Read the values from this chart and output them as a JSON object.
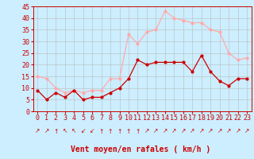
{
  "hours": [
    0,
    1,
    2,
    3,
    4,
    5,
    6,
    7,
    8,
    9,
    10,
    11,
    12,
    13,
    14,
    15,
    16,
    17,
    18,
    19,
    20,
    21,
    22,
    23
  ],
  "vent_moyen": [
    9,
    5,
    8,
    6,
    9,
    5,
    6,
    6,
    8,
    10,
    14,
    22,
    20,
    21,
    21,
    21,
    21,
    17,
    24,
    17,
    13,
    11,
    14,
    14
  ],
  "rafales": [
    15,
    14,
    10,
    8,
    9,
    8,
    9,
    9,
    14,
    14,
    33,
    29,
    34,
    35,
    43,
    40,
    39,
    38,
    38,
    35,
    34,
    25,
    22,
    23
  ],
  "vent_moyen_color": "#cc0000",
  "rafales_color": "#ffaaaa",
  "bg_color": "#cceeff",
  "grid_color": "#bbbbbb",
  "axis_color": "#cc0000",
  "xlabel": "Vent moyen/en rafales ( km/h )",
  "ylim": [
    0,
    45
  ],
  "yticks": [
    0,
    5,
    10,
    15,
    20,
    25,
    30,
    35,
    40,
    45
  ],
  "tick_fontsize": 6,
  "label_fontsize": 7,
  "arrow_chars": [
    "↗",
    "↗",
    "↑",
    "↖",
    "↖",
    "↙",
    "↙",
    "↑",
    "↑",
    "↑",
    "↑",
    "↑",
    "↗",
    "↗",
    "↗",
    "↗",
    "↗",
    "↗",
    "↗",
    "↗",
    "↗",
    "↗",
    "↗",
    "↗"
  ]
}
